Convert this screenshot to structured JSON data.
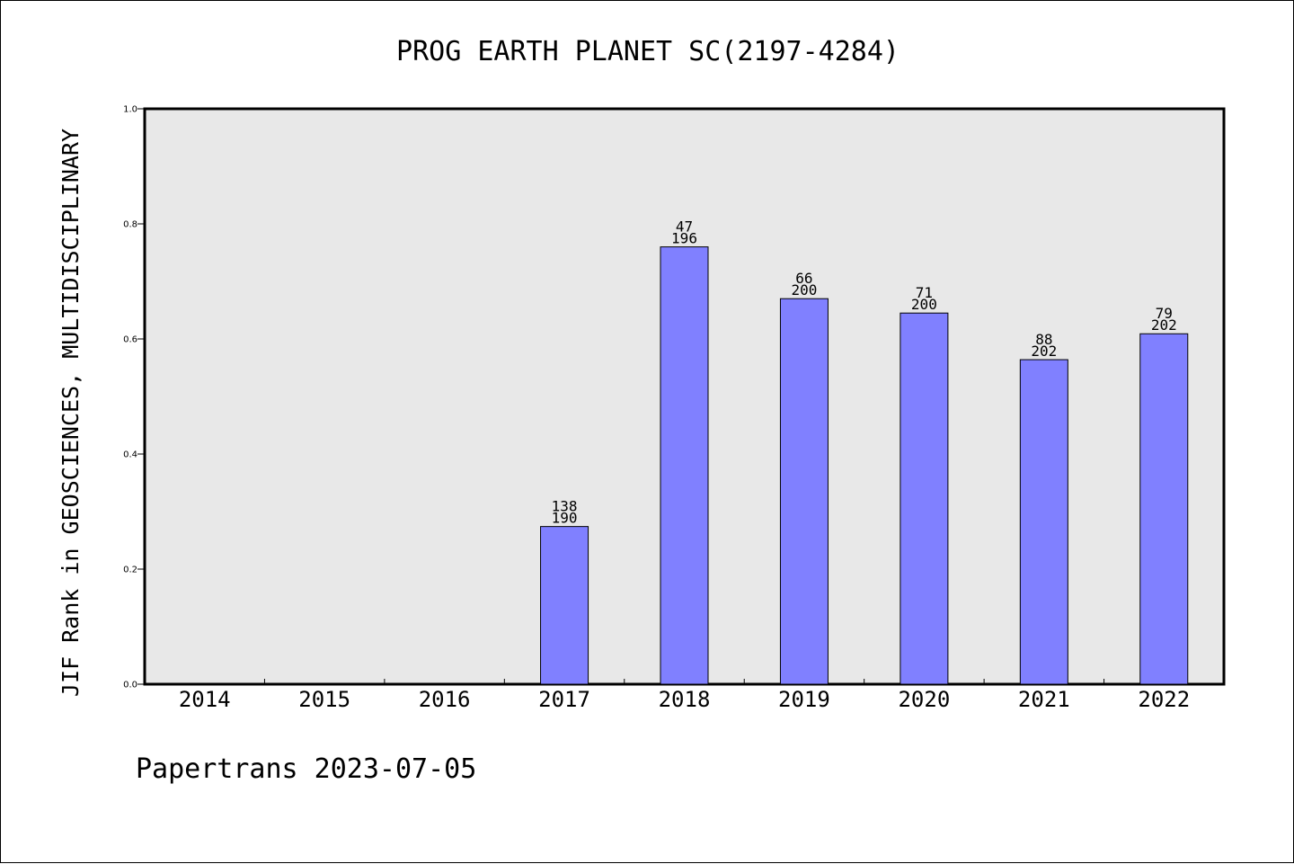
{
  "chart_data": {
    "type": "bar",
    "title": "PROG EARTH PLANET SC(2197-4284)",
    "xlabel": "",
    "ylabel": "JIF Rank in GEOSCIENCES, MULTIDISCIPLINARY",
    "ylim": [
      0.0,
      1.0
    ],
    "yticks": [
      "0.0",
      "0.2",
      "0.4",
      "0.6",
      "0.8",
      "1.0"
    ],
    "grid": false,
    "legend": "none",
    "categories": [
      "2014",
      "2015",
      "2016",
      "2017",
      "2018",
      "2019",
      "2020",
      "2021",
      "2022"
    ],
    "values": [
      null,
      null,
      null,
      0.274,
      0.76,
      0.67,
      0.645,
      0.564,
      0.609
    ],
    "rank": [
      null,
      null,
      null,
      "138",
      "47",
      "66",
      "71",
      "88",
      "79"
    ],
    "total": [
      null,
      null,
      null,
      "190",
      "196",
      "200",
      "200",
      "202",
      "202"
    ],
    "bar_color": "#8080ff",
    "plot_background": "#e8e8e8"
  },
  "footer": {
    "text": "Papertrans 2023-07-05"
  }
}
